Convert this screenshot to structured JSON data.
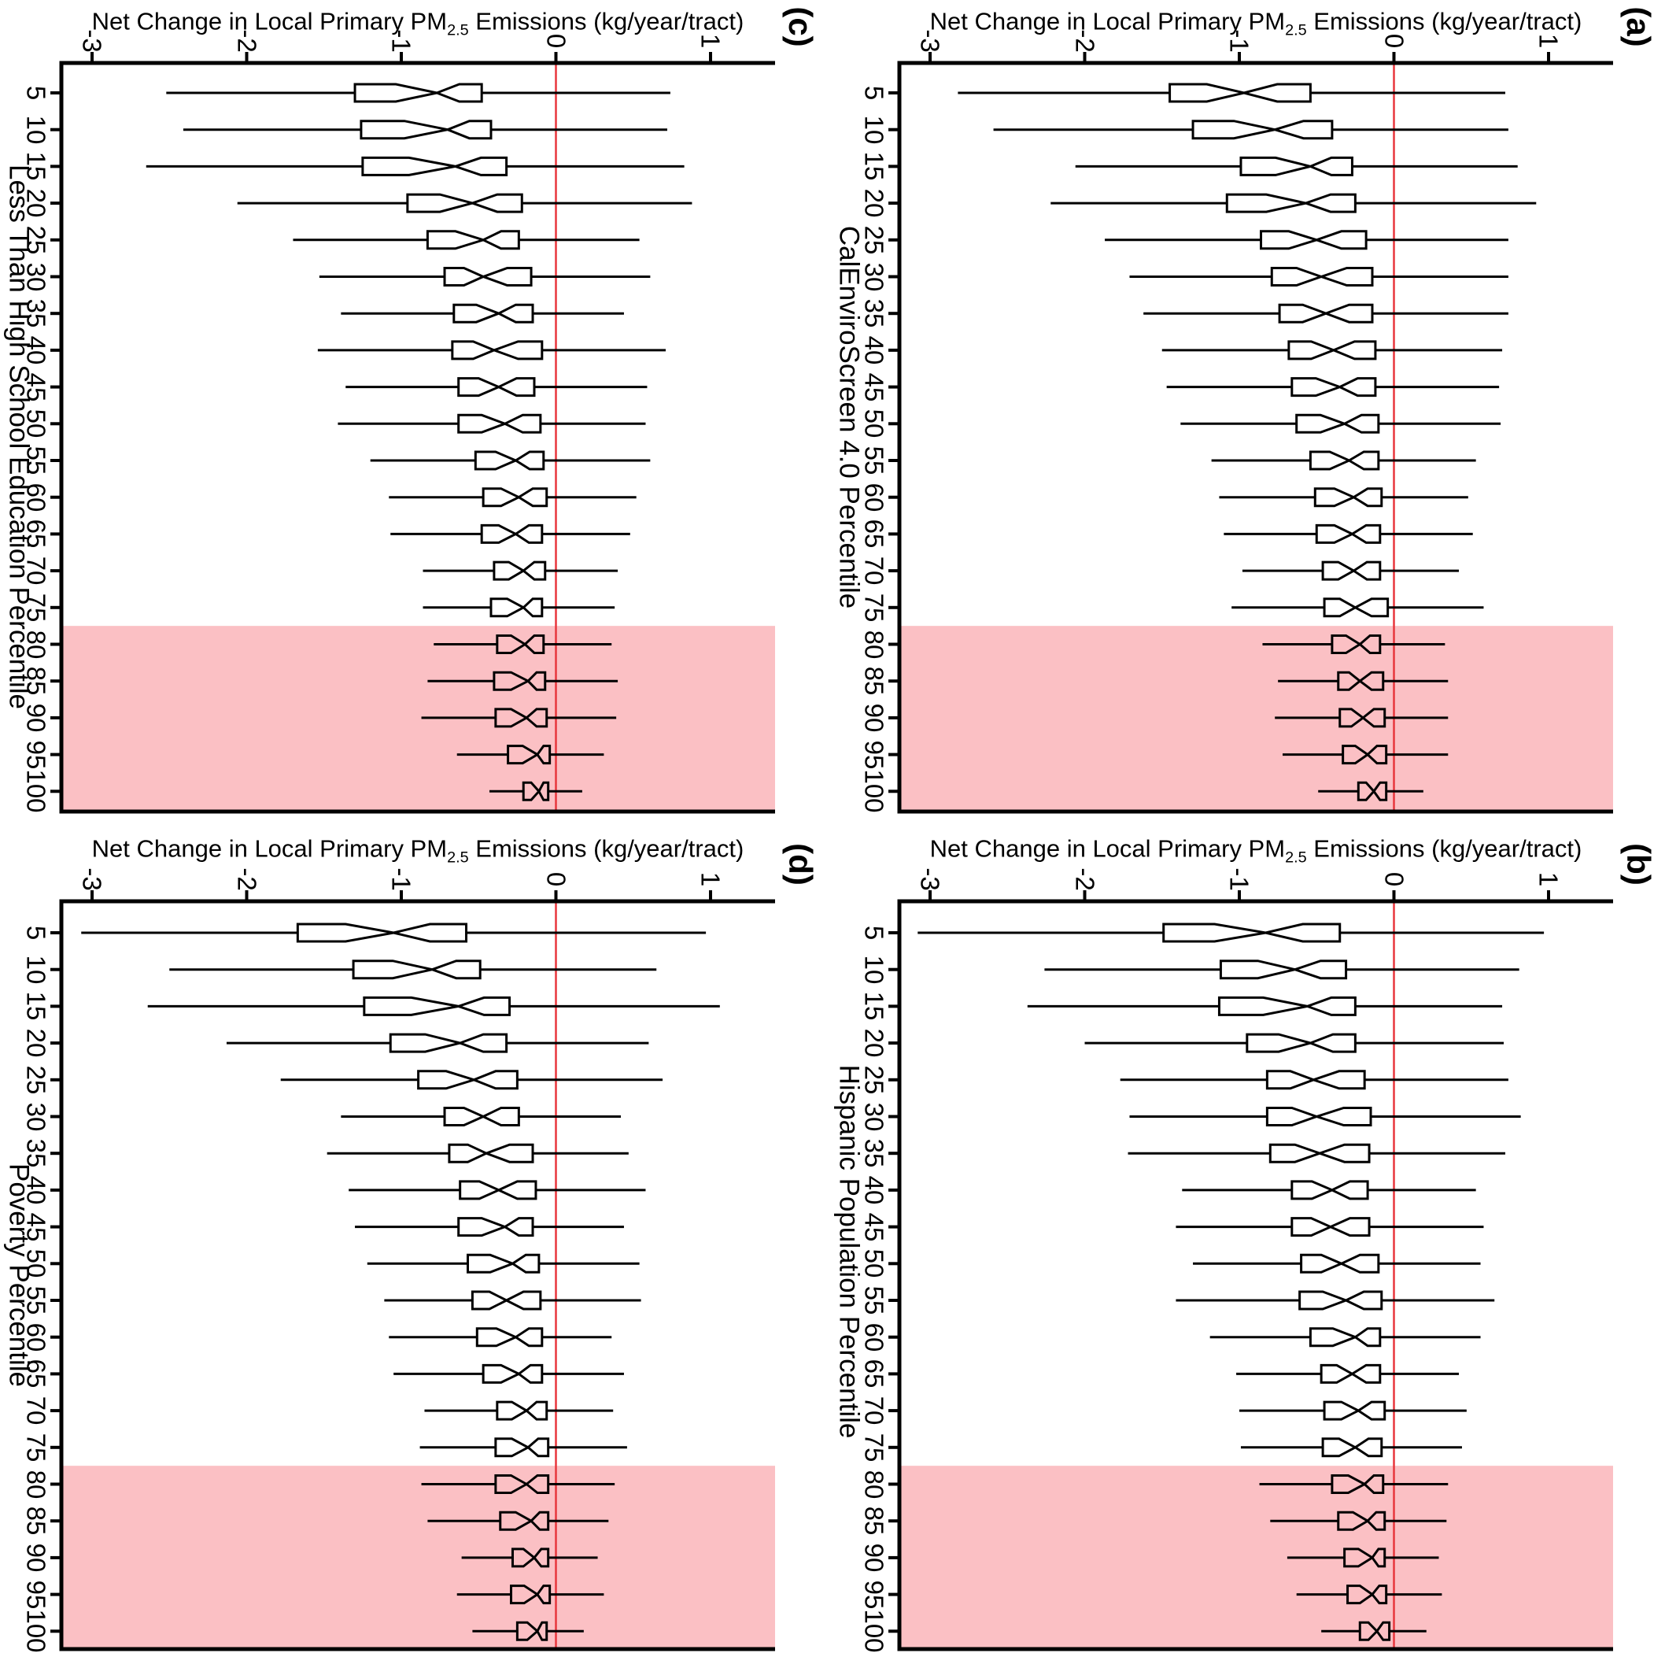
{
  "chart_data": {
    "type": "boxplot",
    "orientation": "horizontal-rotated-figure",
    "title": "Net Change in Local Primary PM2.5 Emissions (kg/year/tract)",
    "value_axis_label": {
      "pre": "Net Change in Local Primary PM",
      "sub": "2.5",
      "post": " Emissions (kg/year/tract)"
    },
    "value_axis": {
      "ticks": [
        -3,
        -2,
        -1,
        0,
        1
      ],
      "tick_labels": [
        "-3",
        "-2",
        "-1",
        "0",
        "1"
      ],
      "range": [
        -3.2,
        1.41
      ],
      "zero_reference_line": 0,
      "unit": "kg/year/tract"
    },
    "categories": [
      5,
      10,
      15,
      20,
      25,
      30,
      35,
      40,
      45,
      50,
      55,
      60,
      65,
      70,
      75,
      80,
      85,
      90,
      95,
      100
    ],
    "highlight": {
      "categories_from": 80,
      "categories_to": 100,
      "description": "shaded band over 80th-100th percentile rows"
    },
    "colors": {
      "highlight_band": "#FBC0C4",
      "zero_line": "#E8363D",
      "box_stroke": "#000000",
      "background": "#ffffff"
    },
    "box_columns": [
      "percentile",
      "whisker_low",
      "q1",
      "median",
      "q3",
      "whisker_high"
    ],
    "panels": [
      {
        "letter": "(a)",
        "axis_title": "CalEnviroScreen 4.0 Percentile",
        "grid_position": "top-right",
        "boxes": [
          [
            5,
            -2.82,
            -1.45,
            -0.97,
            -0.54,
            0.72
          ],
          [
            10,
            -2.59,
            -1.3,
            -0.77,
            -0.4,
            0.74
          ],
          [
            15,
            -2.06,
            -0.99,
            -0.54,
            -0.27,
            0.8
          ],
          [
            20,
            -2.22,
            -1.08,
            -0.57,
            -0.25,
            0.92
          ],
          [
            25,
            -1.87,
            -0.86,
            -0.5,
            -0.18,
            0.74
          ],
          [
            30,
            -1.71,
            -0.79,
            -0.47,
            -0.14,
            0.74
          ],
          [
            35,
            -1.62,
            -0.74,
            -0.44,
            -0.14,
            0.74
          ],
          [
            40,
            -1.5,
            -0.68,
            -0.39,
            -0.12,
            0.7
          ],
          [
            45,
            -1.47,
            -0.66,
            -0.35,
            -0.12,
            0.68
          ],
          [
            50,
            -1.38,
            -0.63,
            -0.32,
            -0.1,
            0.69
          ],
          [
            55,
            -1.18,
            -0.54,
            -0.29,
            -0.1,
            0.53
          ],
          [
            60,
            -1.13,
            -0.51,
            -0.26,
            -0.08,
            0.48
          ],
          [
            65,
            -1.1,
            -0.5,
            -0.27,
            -0.09,
            0.51
          ],
          [
            70,
            -0.98,
            -0.46,
            -0.26,
            -0.09,
            0.42
          ],
          [
            75,
            -1.05,
            -0.45,
            -0.25,
            -0.04,
            0.58
          ],
          [
            80,
            -0.85,
            -0.4,
            -0.22,
            -0.09,
            0.33
          ],
          [
            85,
            -0.75,
            -0.36,
            -0.22,
            -0.07,
            0.35
          ],
          [
            90,
            -0.77,
            -0.35,
            -0.2,
            -0.06,
            0.35
          ],
          [
            95,
            -0.72,
            -0.33,
            -0.17,
            -0.05,
            0.35
          ],
          [
            100,
            -0.49,
            -0.23,
            -0.13,
            -0.05,
            0.19
          ]
        ]
      },
      {
        "letter": "(b)",
        "axis_title": "Hispanic Population Percentile",
        "grid_position": "bottom-right",
        "boxes": [
          [
            5,
            -3.08,
            -1.49,
            -0.83,
            -0.35,
            0.97
          ],
          [
            10,
            -2.26,
            -1.12,
            -0.64,
            -0.31,
            0.81
          ],
          [
            15,
            -2.37,
            -1.13,
            -0.56,
            -0.25,
            0.7
          ],
          [
            20,
            -2.0,
            -0.95,
            -0.54,
            -0.25,
            0.71
          ],
          [
            25,
            -1.77,
            -0.82,
            -0.52,
            -0.19,
            0.74
          ],
          [
            30,
            -1.71,
            -0.82,
            -0.5,
            -0.15,
            0.82
          ],
          [
            35,
            -1.72,
            -0.8,
            -0.48,
            -0.16,
            0.72
          ],
          [
            40,
            -1.37,
            -0.66,
            -0.4,
            -0.17,
            0.53
          ],
          [
            45,
            -1.41,
            -0.66,
            -0.41,
            -0.16,
            0.58
          ],
          [
            50,
            -1.3,
            -0.6,
            -0.34,
            -0.1,
            0.56
          ],
          [
            55,
            -1.41,
            -0.61,
            -0.31,
            -0.08,
            0.65
          ],
          [
            60,
            -1.19,
            -0.54,
            -0.25,
            -0.09,
            0.56
          ],
          [
            65,
            -1.02,
            -0.47,
            -0.27,
            -0.09,
            0.42
          ],
          [
            70,
            -1.0,
            -0.45,
            -0.23,
            -0.06,
            0.47
          ],
          [
            75,
            -0.99,
            -0.46,
            -0.25,
            -0.08,
            0.44
          ],
          [
            80,
            -0.87,
            -0.4,
            -0.19,
            -0.07,
            0.35
          ],
          [
            85,
            -0.8,
            -0.36,
            -0.17,
            -0.06,
            0.34
          ],
          [
            90,
            -0.69,
            -0.32,
            -0.14,
            -0.06,
            0.29
          ],
          [
            95,
            -0.63,
            -0.3,
            -0.14,
            -0.05,
            0.31
          ],
          [
            100,
            -0.47,
            -0.22,
            -0.11,
            -0.03,
            0.21
          ]
        ]
      },
      {
        "letter": "(c)",
        "axis_title": "Less Than High School Education Percentile",
        "grid_position": "top-left",
        "boxes": [
          [
            5,
            -2.52,
            -1.3,
            -0.77,
            -0.48,
            0.74
          ],
          [
            10,
            -2.41,
            -1.26,
            -0.7,
            -0.42,
            0.72
          ],
          [
            15,
            -2.65,
            -1.25,
            -0.65,
            -0.32,
            0.83
          ],
          [
            20,
            -2.06,
            -0.96,
            -0.54,
            -0.22,
            0.88
          ],
          [
            25,
            -1.7,
            -0.83,
            -0.47,
            -0.24,
            0.54
          ],
          [
            30,
            -1.53,
            -0.72,
            -0.47,
            -0.16,
            0.61
          ],
          [
            35,
            -1.39,
            -0.66,
            -0.37,
            -0.15,
            0.44
          ],
          [
            40,
            -1.54,
            -0.67,
            -0.4,
            -0.09,
            0.71
          ],
          [
            45,
            -1.36,
            -0.63,
            -0.37,
            -0.14,
            0.59
          ],
          [
            50,
            -1.41,
            -0.63,
            -0.33,
            -0.1,
            0.58
          ],
          [
            55,
            -1.2,
            -0.52,
            -0.26,
            -0.08,
            0.61
          ],
          [
            60,
            -1.08,
            -0.47,
            -0.24,
            -0.06,
            0.52
          ],
          [
            65,
            -1.07,
            -0.48,
            -0.26,
            -0.09,
            0.48
          ],
          [
            70,
            -0.86,
            -0.4,
            -0.21,
            -0.07,
            0.4
          ],
          [
            75,
            -0.86,
            -0.42,
            -0.21,
            -0.09,
            0.38
          ],
          [
            80,
            -0.79,
            -0.38,
            -0.2,
            -0.08,
            0.36
          ],
          [
            85,
            -0.83,
            -0.4,
            -0.18,
            -0.07,
            0.4
          ],
          [
            90,
            -0.87,
            -0.39,
            -0.19,
            -0.06,
            0.39
          ],
          [
            95,
            -0.64,
            -0.31,
            -0.12,
            -0.04,
            0.31
          ],
          [
            100,
            -0.43,
            -0.21,
            -0.11,
            -0.05,
            0.17
          ]
        ]
      },
      {
        "letter": "(d)",
        "axis_title": "Poverty Percentile",
        "grid_position": "bottom-left",
        "boxes": [
          [
            5,
            -3.07,
            -1.67,
            -1.05,
            -0.58,
            0.97
          ],
          [
            10,
            -2.5,
            -1.31,
            -0.8,
            -0.49,
            0.65
          ],
          [
            15,
            -2.64,
            -1.24,
            -0.63,
            -0.3,
            1.06
          ],
          [
            20,
            -2.13,
            -1.07,
            -0.62,
            -0.32,
            0.6
          ],
          [
            25,
            -1.78,
            -0.89,
            -0.53,
            -0.25,
            0.69
          ],
          [
            30,
            -1.39,
            -0.72,
            -0.47,
            -0.24,
            0.42
          ],
          [
            35,
            -1.48,
            -0.69,
            -0.45,
            -0.15,
            0.47
          ],
          [
            40,
            -1.34,
            -0.62,
            -0.37,
            -0.13,
            0.58
          ],
          [
            45,
            -1.3,
            -0.63,
            -0.33,
            -0.15,
            0.44
          ],
          [
            50,
            -1.22,
            -0.57,
            -0.28,
            -0.11,
            0.54
          ],
          [
            55,
            -1.11,
            -0.54,
            -0.32,
            -0.1,
            0.55
          ],
          [
            60,
            -1.08,
            -0.51,
            -0.26,
            -0.09,
            0.36
          ],
          [
            65,
            -1.05,
            -0.47,
            -0.24,
            -0.09,
            0.44
          ],
          [
            70,
            -0.85,
            -0.38,
            -0.19,
            -0.06,
            0.37
          ],
          [
            75,
            -0.88,
            -0.39,
            -0.18,
            -0.05,
            0.46
          ],
          [
            80,
            -0.87,
            -0.39,
            -0.19,
            -0.05,
            0.38
          ],
          [
            85,
            -0.83,
            -0.36,
            -0.16,
            -0.05,
            0.34
          ],
          [
            90,
            -0.61,
            -0.28,
            -0.14,
            -0.05,
            0.27
          ],
          [
            95,
            -0.64,
            -0.29,
            -0.12,
            -0.04,
            0.31
          ],
          [
            100,
            -0.54,
            -0.25,
            -0.12,
            -0.06,
            0.18
          ]
        ]
      }
    ]
  }
}
